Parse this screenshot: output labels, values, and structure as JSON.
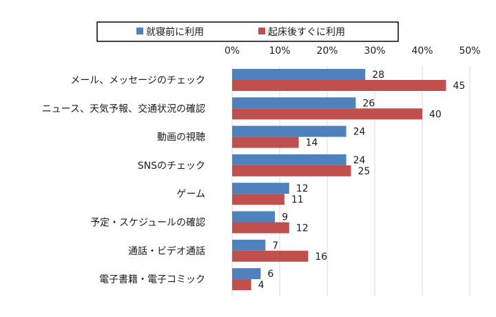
{
  "chart_data": {
    "type": "bar",
    "orientation": "horizontal",
    "title": "",
    "xlabel": "",
    "ylabel": "",
    "xlim": [
      0,
      50
    ],
    "ticks": [
      "0%",
      "10%",
      "20%",
      "30%",
      "40%",
      "50%"
    ],
    "tick_values": [
      0,
      10,
      20,
      30,
      40,
      50
    ],
    "legend_position": "top",
    "categories": [
      "メール、メッセージのチェック",
      "ニュース、天気予報、交通状況の確認",
      "動画の視聴",
      "SNSのチェック",
      "ゲーム",
      "予定・スケジュールの確認",
      "通話・ビデオ通話",
      "電子書籍・電子コミック"
    ],
    "series": [
      {
        "name": "就寝前に利用",
        "color": "#4f81bd",
        "values": [
          28,
          26,
          24,
          24,
          12,
          9,
          7,
          6
        ]
      },
      {
        "name": "起床後すぐに利用",
        "color": "#c0504d",
        "values": [
          45,
          40,
          14,
          25,
          11,
          12,
          16,
          4
        ]
      }
    ]
  }
}
